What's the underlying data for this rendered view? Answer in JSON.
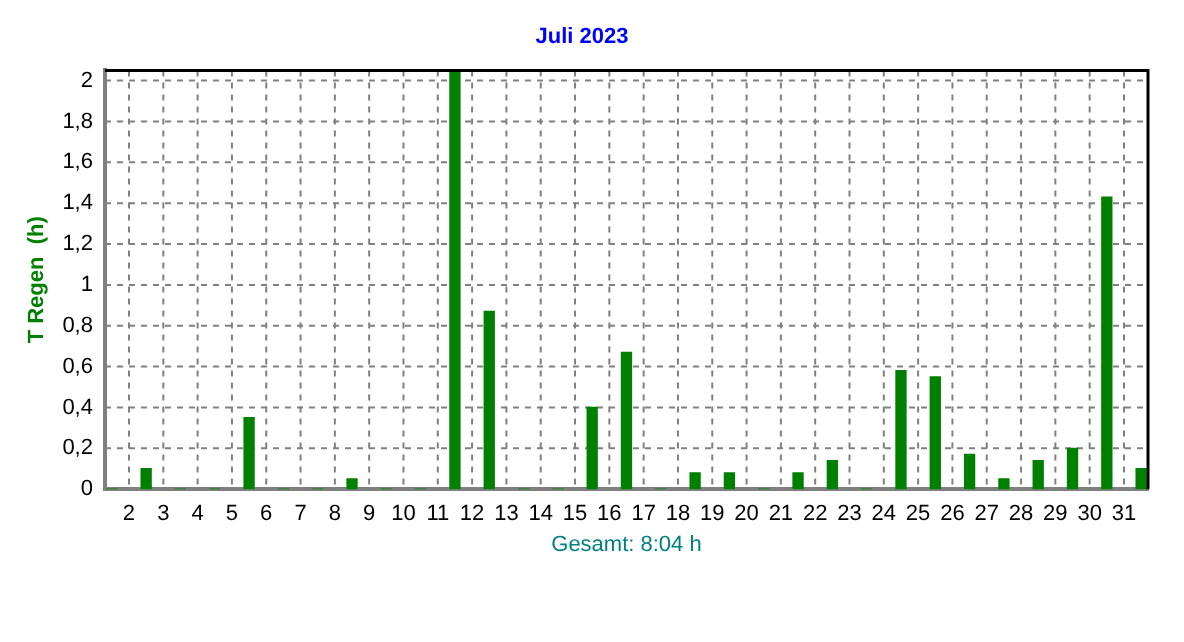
{
  "chart_data": {
    "type": "bar",
    "title": "Juli 2023",
    "xlabel": "Gesamt: 8:04 h",
    "ylabel": "T Regen  (h)",
    "x": [
      1.5,
      2.5,
      3.5,
      4.5,
      5.5,
      6.5,
      7.5,
      8.5,
      9.5,
      10.5,
      11.5,
      12.5,
      13.5,
      14.5,
      15.5,
      16.5,
      17.5,
      18.5,
      19.5,
      20.5,
      21.5,
      22.5,
      23.5,
      24.5,
      25.5,
      26.5,
      27.5,
      28.5,
      29.5,
      30.5,
      31.5
    ],
    "series": [
      {
        "color": "#008000",
        "values": [
          0,
          0.1,
          0,
          0,
          0.35,
          0,
          0,
          0.05,
          0,
          0,
          2.05,
          0.87,
          0,
          0,
          0.4,
          0.67,
          0,
          0.08,
          0.08,
          0,
          0.08,
          0.14,
          0,
          0.58,
          0.55,
          0.17,
          0.05,
          0.14,
          0.2,
          1.43,
          0.1
        ]
      }
    ],
    "xlim": [
      1.3,
      31.7
    ],
    "xticks": [
      2,
      3,
      4,
      5,
      6,
      7,
      8,
      9,
      10,
      11,
      12,
      13,
      14,
      15,
      16,
      17,
      18,
      19,
      20,
      21,
      22,
      23,
      24,
      25,
      26,
      27,
      28,
      29,
      30,
      31
    ],
    "ylim": [
      0,
      2.05
    ],
    "yticks": [
      0,
      {
        "value": 0.2,
        "label": "0,2"
      },
      {
        "value": 0.4,
        "label": "0,4"
      },
      {
        "value": 0.6,
        "label": "0,6"
      },
      {
        "value": 0.8,
        "label": "0,8"
      },
      1,
      {
        "value": 1.2,
        "label": "1,2"
      },
      {
        "value": 1.4,
        "label": "1,4"
      },
      {
        "value": 1.6,
        "label": "1,6"
      },
      {
        "value": 1.8,
        "label": "1,8"
      },
      2
    ],
    "grid": true,
    "legend": false
  }
}
